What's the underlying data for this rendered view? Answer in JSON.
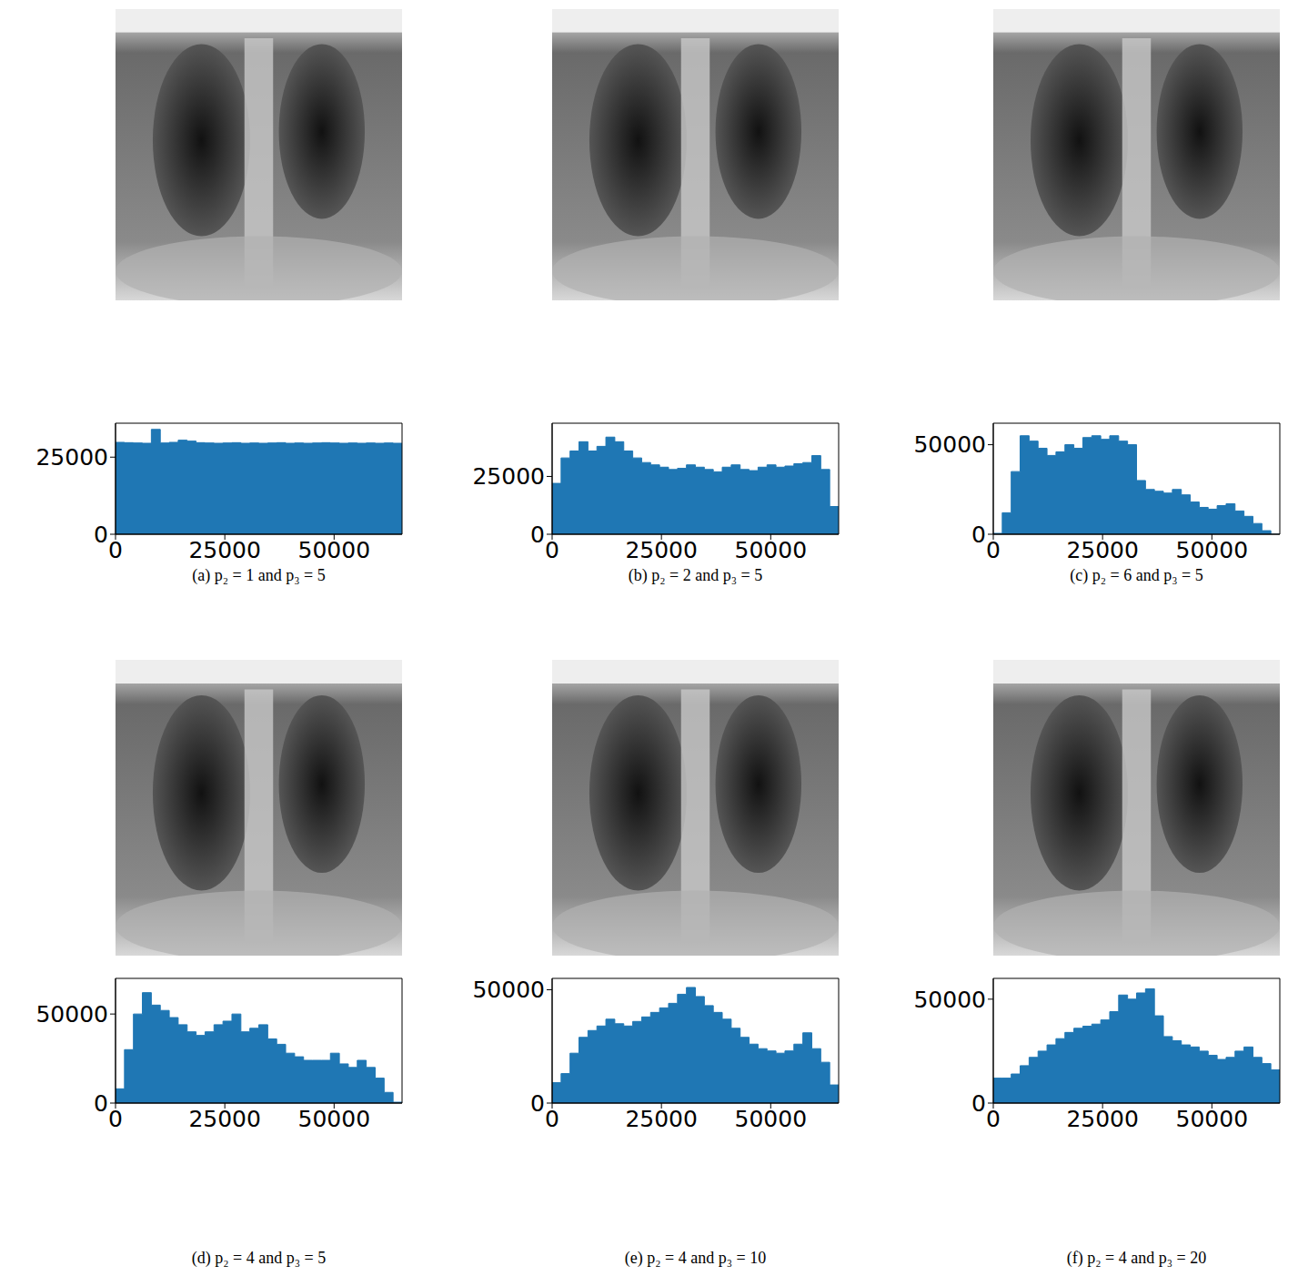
{
  "chart_data": [
    {
      "type": "histogram",
      "title": "(a) p₂ = 1 and p₃ = 5",
      "color": "#1f77b4",
      "bins": [
        0,
        2048,
        4096,
        6144,
        8192,
        10240,
        12288,
        14336,
        16384,
        18432,
        20480,
        22528,
        24576,
        26624,
        28672,
        30720,
        32768,
        34816,
        36864,
        38912,
        40960,
        43008,
        45056,
        47104,
        49152,
        51200,
        53248,
        55296,
        57344,
        59392,
        61440,
        63488,
        65536
      ],
      "counts": [
        29800,
        29700,
        29600,
        29500,
        34000,
        29600,
        29800,
        30500,
        30200,
        29700,
        29600,
        29500,
        29600,
        29700,
        29500,
        29600,
        29500,
        29600,
        29700,
        29500,
        29600,
        29500,
        29600,
        29700,
        29600,
        29500,
        29600,
        29500,
        29600,
        29500,
        29600,
        29500
      ],
      "xlim": [
        0,
        65536
      ],
      "xticks": [
        0,
        25000,
        50000
      ],
      "ylim": [
        0,
        36000
      ],
      "yticks": [
        0,
        25000
      ]
    },
    {
      "type": "histogram",
      "title": "(b) p₂ = 2 and p₃ = 5",
      "color": "#1f77b4",
      "bins": [
        0,
        2048,
        4096,
        6144,
        8192,
        10240,
        12288,
        14336,
        16384,
        18432,
        20480,
        22528,
        24576,
        26624,
        28672,
        30720,
        32768,
        34816,
        36864,
        38912,
        40960,
        43008,
        45056,
        47104,
        49152,
        51200,
        53248,
        55296,
        57344,
        59392,
        61440,
        63488,
        65536
      ],
      "counts": [
        22000,
        33000,
        36000,
        40000,
        36000,
        38000,
        42000,
        40000,
        36000,
        33000,
        31000,
        30000,
        29000,
        28000,
        28500,
        30000,
        29000,
        28000,
        27000,
        29000,
        30000,
        28000,
        27500,
        29000,
        30000,
        29000,
        29500,
        30500,
        31000,
        34000,
        28000,
        12000
      ],
      "xlim": [
        0,
        65536
      ],
      "xticks": [
        0,
        25000,
        50000
      ],
      "ylim": [
        0,
        48000
      ],
      "yticks": [
        0,
        25000
      ]
    },
    {
      "type": "histogram",
      "title": "(c) p₂ = 6 and p₃ = 5",
      "color": "#1f77b4",
      "bins": [
        0,
        2048,
        4096,
        6144,
        8192,
        10240,
        12288,
        14336,
        16384,
        18432,
        20480,
        22528,
        24576,
        26624,
        28672,
        30720,
        32768,
        34816,
        36864,
        38912,
        40960,
        43008,
        45056,
        47104,
        49152,
        51200,
        53248,
        55296,
        57344,
        59392,
        61440,
        63488,
        65536
      ],
      "counts": [
        500,
        12000,
        35000,
        55000,
        52000,
        48000,
        44000,
        46000,
        50000,
        48000,
        54000,
        55000,
        53000,
        55000,
        52000,
        50000,
        30000,
        25000,
        24000,
        23000,
        25000,
        22000,
        18000,
        15000,
        14000,
        16000,
        17000,
        13000,
        10000,
        6000,
        2000,
        0
      ],
      "xlim": [
        0,
        65536
      ],
      "xticks": [
        0,
        25000,
        50000
      ],
      "ylim": [
        0,
        62000
      ],
      "yticks": [
        0,
        50000
      ]
    },
    {
      "type": "histogram",
      "title": "(d) p₂ = 4 and p₃ = 5",
      "color": "#1f77b4",
      "bins": [
        0,
        2048,
        4096,
        6144,
        8192,
        10240,
        12288,
        14336,
        16384,
        18432,
        20480,
        22528,
        24576,
        26624,
        28672,
        30720,
        32768,
        34816,
        36864,
        38912,
        40960,
        43008,
        45056,
        47104,
        49152,
        51200,
        53248,
        55296,
        57344,
        59392,
        61440,
        63488,
        65536
      ],
      "counts": [
        8000,
        30000,
        50000,
        62000,
        55000,
        52000,
        48000,
        44000,
        40000,
        38000,
        40000,
        44000,
        46000,
        50000,
        40000,
        42000,
        44000,
        36000,
        33000,
        28000,
        26000,
        24000,
        24000,
        24000,
        28000,
        22000,
        20000,
        24000,
        20000,
        14000,
        6000,
        500
      ],
      "xlim": [
        0,
        65536
      ],
      "xticks": [
        0,
        25000,
        50000
      ],
      "ylim": [
        0,
        70000
      ],
      "yticks": [
        0,
        50000
      ]
    },
    {
      "type": "histogram",
      "title": "(e) p₂ = 4 and p₃ = 10",
      "color": "#1f77b4",
      "bins": [
        0,
        2048,
        4096,
        6144,
        8192,
        10240,
        12288,
        14336,
        16384,
        18432,
        20480,
        22528,
        24576,
        26624,
        28672,
        30720,
        32768,
        34816,
        36864,
        38912,
        40960,
        43008,
        45056,
        47104,
        49152,
        51200,
        53248,
        55296,
        57344,
        59392,
        61440,
        63488,
        65536
      ],
      "counts": [
        9000,
        13000,
        22000,
        29000,
        32000,
        34000,
        37000,
        35000,
        34000,
        36000,
        38000,
        40000,
        42000,
        44000,
        48000,
        51000,
        47000,
        43000,
        40000,
        37000,
        33000,
        29000,
        26000,
        24000,
        23000,
        22000,
        23000,
        26000,
        31000,
        24000,
        18000,
        8000
      ],
      "xlim": [
        0,
        65536
      ],
      "xticks": [
        0,
        25000,
        50000
      ],
      "ylim": [
        0,
        55000
      ],
      "yticks": [
        0,
        50000
      ]
    },
    {
      "type": "histogram",
      "title": "(f) p₂ = 4 and p₃ = 20",
      "color": "#1f77b4",
      "bins": [
        0,
        2048,
        4096,
        6144,
        8192,
        10240,
        12288,
        14336,
        16384,
        18432,
        20480,
        22528,
        24576,
        26624,
        28672,
        30720,
        32768,
        34816,
        36864,
        38912,
        40960,
        43008,
        45056,
        47104,
        49152,
        51200,
        53248,
        55296,
        57344,
        59392,
        61440,
        63488,
        65536
      ],
      "counts": [
        12000,
        12000,
        14000,
        18000,
        22000,
        25000,
        28000,
        31000,
        34000,
        36000,
        37000,
        38000,
        40000,
        44000,
        52000,
        50000,
        53000,
        55000,
        42000,
        32000,
        30000,
        28000,
        27000,
        25000,
        23000,
        21000,
        22000,
        25000,
        27000,
        22000,
        19000,
        16000
      ],
      "xlim": [
        0,
        65536
      ],
      "xticks": [
        0,
        25000,
        50000
      ],
      "ylim": [
        0,
        60000
      ],
      "yticks": [
        0,
        50000
      ]
    }
  ]
}
